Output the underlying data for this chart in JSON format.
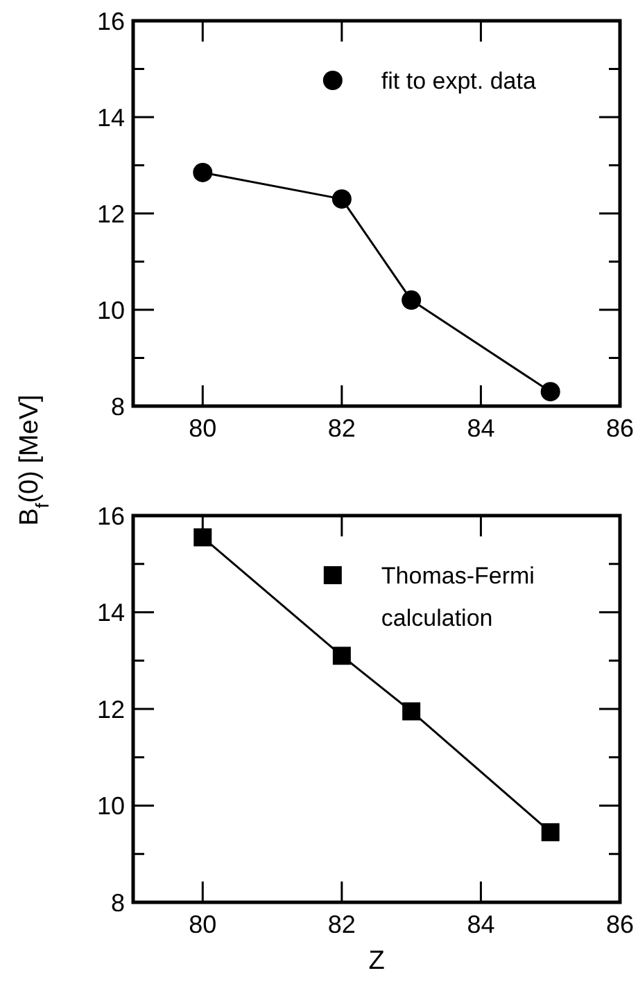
{
  "chart_data": [
    {
      "type": "line",
      "ylabel": "B$_{f}$(0) [MeV]",
      "x": [
        80,
        82,
        83,
        85
      ],
      "series": [
        {
          "name": "fit to expt. data",
          "color": "#000000",
          "values": [
            12.85,
            12.3,
            10.2,
            8.3
          ]
        }
      ],
      "xlim": [
        79,
        86
      ],
      "xticks": [
        80,
        82,
        84,
        86
      ],
      "ylim": [
        8,
        16
      ],
      "yticks": [
        8,
        {
          "value": 9,
          "label": null
        },
        10,
        {
          "value": 11,
          "label": null
        },
        12,
        {
          "value": 13,
          "label": null
        },
        14,
        {
          "value": 15,
          "label": null
        },
        16
      ],
      "marker": "circle",
      "line_style": "solid",
      "legend": "top right",
      "grid": false
    },
    {
      "type": "line",
      "xlabel": "Z",
      "x": [
        80,
        82,
        83,
        85
      ],
      "series": [
        {
          "name": "Thomas-Fermi calculation",
          "color": "#000000",
          "values": [
            15.55,
            13.1,
            11.95,
            9.45
          ]
        }
      ],
      "xlim": [
        79,
        86
      ],
      "xticks": [
        80,
        82,
        84,
        86
      ],
      "ylim": [
        8,
        16
      ],
      "yticks": [
        8,
        {
          "value": 9,
          "label": null
        },
        10,
        {
          "value": 11,
          "label": null
        },
        12,
        {
          "value": 13,
          "label": null
        },
        14,
        {
          "value": 15,
          "label": null
        },
        16
      ],
      "marker": "square",
      "line_style": "solid",
      "legend": "top right",
      "grid": false
    }
  ]
}
